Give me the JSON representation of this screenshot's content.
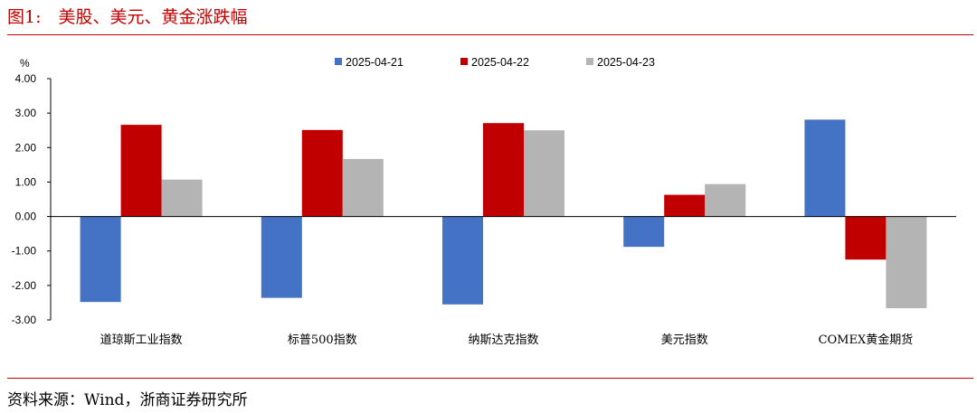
{
  "figure": {
    "title": "图1:　美股、美元、黄金涨跌幅",
    "source": "资料来源：Wind，浙商证券研究所"
  },
  "chart_data": {
    "type": "bar",
    "ylabel": "%",
    "ylim": [
      -3,
      4
    ],
    "yticks": [
      "4.00",
      "3.00",
      "2.00",
      "1.00",
      "0.00",
      "-1.00",
      "-2.00",
      "-3.00"
    ],
    "categories": [
      "道琼斯工业指数",
      "标普500指数",
      "纳斯达克指数",
      "美元指数",
      "COMEX黄金期货"
    ],
    "series": [
      {
        "name": "2025-04-21",
        "color": "#4472c4",
        "values": [
          -2.48,
          -2.36,
          -2.55,
          -0.88,
          2.81
        ]
      },
      {
        "name": "2025-04-22",
        "color": "#c00000",
        "values": [
          2.66,
          2.51,
          2.71,
          0.63,
          -1.25
        ]
      },
      {
        "name": "2025-04-23",
        "color": "#b4b4b4",
        "values": [
          1.07,
          1.67,
          2.5,
          0.94,
          -2.66
        ]
      }
    ],
    "legend_position": "top-center",
    "grid": false
  }
}
